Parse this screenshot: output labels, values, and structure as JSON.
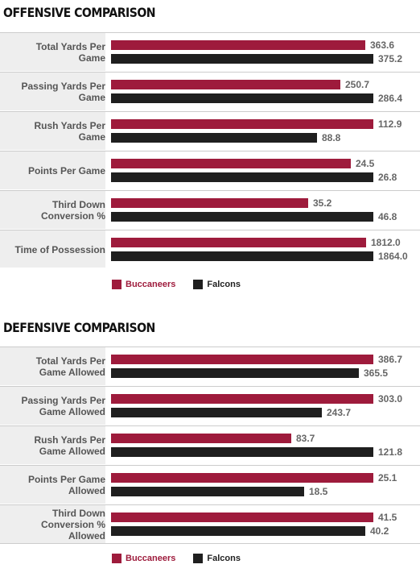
{
  "colors": {
    "buccaneers": "#9e1b3c",
    "falcons": "#1f1f1f",
    "label_bg": "#eeeeee",
    "value_text": "#666666",
    "separator": "#cccccc"
  },
  "offensive": {
    "title": "OFFENSIVE COMPARISON",
    "legend": {
      "buccaneers": "Buccaneers",
      "falcons": "Falcons"
    }
  },
  "defensive": {
    "title": "DEFENSIVE COMPARISON",
    "legend": {
      "buccaneers": "Buccaneers",
      "falcons": "Falcons"
    }
  },
  "chart_data": [
    {
      "type": "bar",
      "title": "OFFENSIVE COMPARISON",
      "categories": [
        "Total Yards Per Game",
        "Passing Yards Per Game",
        "Rush Yards Per Game",
        "Points Per Game",
        "Third Down Conversion %",
        "Time of Possession"
      ],
      "series": [
        {
          "name": "Buccaneers",
          "values": [
            363.6,
            250.7,
            112.9,
            24.5,
            35.2,
            1812.0
          ]
        },
        {
          "name": "Falcons",
          "values": [
            375.2,
            286.4,
            88.8,
            26.8,
            46.8,
            1864.0
          ]
        }
      ],
      "value_labels": {
        "Buccaneers": [
          "363.6",
          "250.7",
          "112.9",
          "24.5",
          "35.2",
          "1812.0"
        ],
        "Falcons": [
          "375.2",
          "286.4",
          "88.8",
          "26.8",
          "46.8",
          "1864.0"
        ]
      },
      "orientation": "horizontal",
      "scale": "each category scaled to the larger of its two values",
      "legend": "bottom-left"
    },
    {
      "type": "bar",
      "title": "DEFENSIVE COMPARISON",
      "categories": [
        "Total Yards Per Game Allowed",
        "Passing Yards Per Game Allowed",
        "Rush Yards Per Game Allowed",
        "Points Per Game Allowed",
        "Third Down Conversion % Allowed"
      ],
      "series": [
        {
          "name": "Buccaneers",
          "values": [
            386.7,
            303.0,
            83.7,
            25.1,
            41.5
          ]
        },
        {
          "name": "Falcons",
          "values": [
            365.5,
            243.7,
            121.8,
            18.5,
            40.2
          ]
        }
      ],
      "value_labels": {
        "Buccaneers": [
          "386.7",
          "303.0",
          "83.7",
          "25.1",
          "41.5"
        ],
        "Falcons": [
          "365.5",
          "243.7",
          "121.8",
          "18.5",
          "40.2"
        ]
      },
      "orientation": "horizontal",
      "scale": "each category scaled to the larger of its two values",
      "legend": "bottom-left"
    }
  ]
}
